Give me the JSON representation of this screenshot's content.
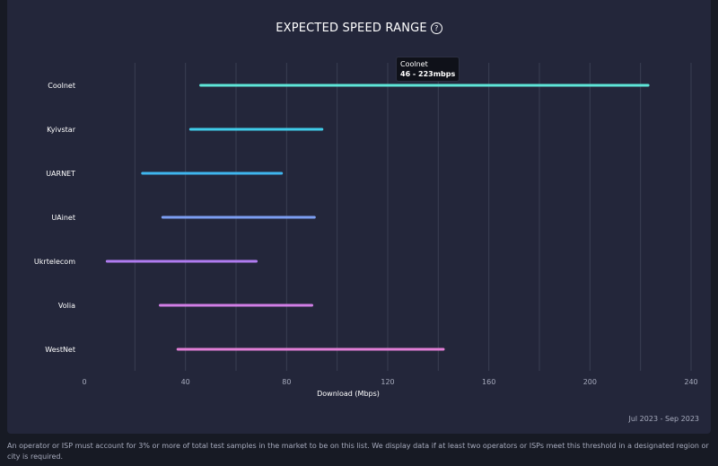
{
  "header": {
    "title": "EXPECTED SPEED RANGE",
    "help_icon": "question-circle-icon"
  },
  "tooltip": {
    "name": "Coolnet",
    "range": "46 - 223mbps"
  },
  "date_range": "Jul 2023 - Sep 2023",
  "footnote": "An operator or ISP must account for 3% or more of total test samples in the market to be on this list. We display data if at least two operators or ISPs meet this threshold in a designated region or city is required.",
  "colors": {
    "background": "#171a24",
    "card": "#23263a",
    "grid": "#3a3e52"
  },
  "chart_data": {
    "type": "range-bar",
    "title": "EXPECTED SPEED RANGE",
    "xlabel": "Download (Mbps)",
    "xlim": [
      0,
      240
    ],
    "xticks": [
      0,
      40,
      80,
      120,
      160,
      200,
      240
    ],
    "grid": true,
    "series": [
      {
        "name": "Coolnet",
        "low": 46,
        "high": 223,
        "color": "#5ee6d8"
      },
      {
        "name": "Kyivstar",
        "low": 42,
        "high": 94,
        "color": "#40cdea"
      },
      {
        "name": "UARNET",
        "low": 23,
        "high": 78,
        "color": "#3fb6ee"
      },
      {
        "name": "UAinet",
        "low": 31,
        "high": 91,
        "color": "#7c9ef2"
      },
      {
        "name": "Ukrtelecom",
        "low": 9,
        "high": 68,
        "color": "#b07cf0"
      },
      {
        "name": "Volia",
        "low": 30,
        "high": 90,
        "color": "#d27ee6"
      },
      {
        "name": "WestNet",
        "low": 37,
        "high": 142,
        "color": "#e27fd6"
      }
    ]
  }
}
